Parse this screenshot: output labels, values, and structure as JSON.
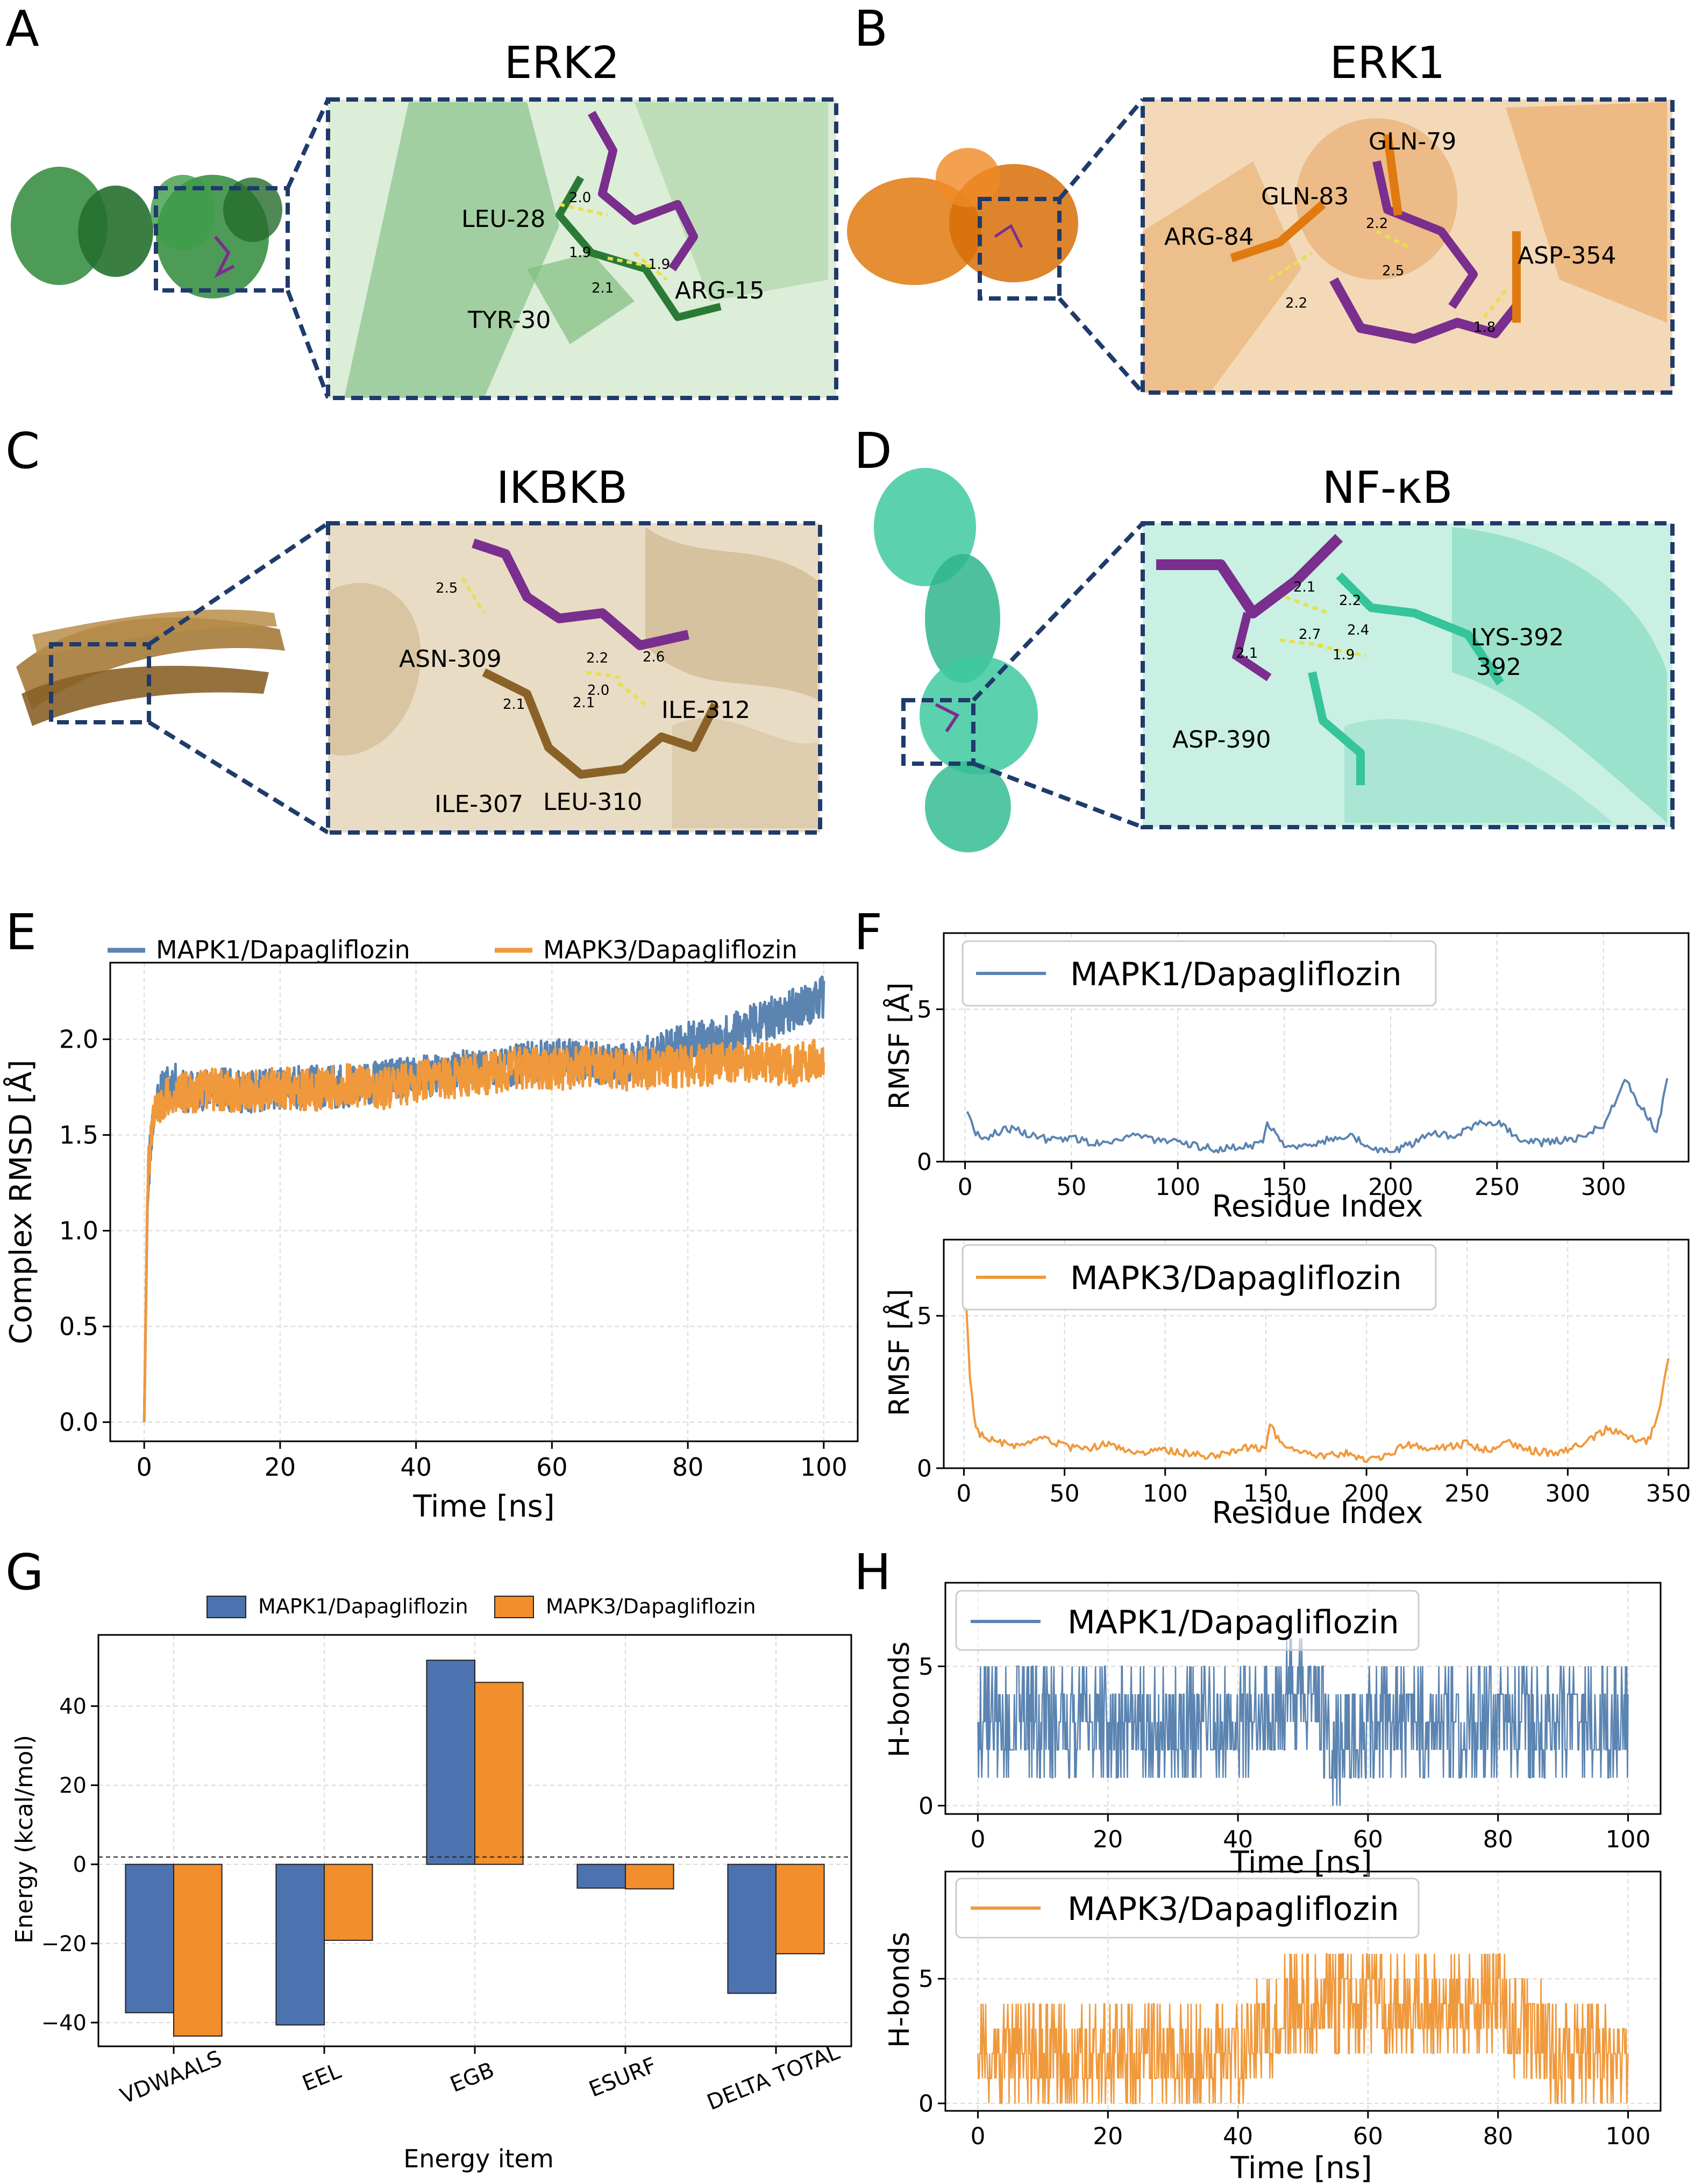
{
  "panel_letters": {
    "A": "A",
    "B": "B",
    "C": "C",
    "D": "D",
    "E": "E",
    "F": "F",
    "G": "G",
    "H": "H"
  },
  "colors": {
    "mapk1": "#5b84b1",
    "mapk3": "#f0993c",
    "bar_blue": "#4c72b0",
    "bar_orange": "#f28e2b",
    "erk2": "#2f8a3a",
    "erk1": "#e07a10",
    "ikbkb": "#a57a3a",
    "nfkb": "#3fc9a0",
    "ligand": "#7a2e8e",
    "frame": "#1f3b6b"
  },
  "structures": [
    {
      "title": "ERK2",
      "residues": [
        "LEU-28",
        "TYR-30",
        "ARG-15"
      ],
      "distances": [
        "2.0",
        "1.9",
        "2.1",
        "1.9"
      ]
    },
    {
      "title": "ERK1",
      "residues": [
        "GLN-79",
        "GLN-83",
        "ARG-84",
        "ASP-354"
      ],
      "distances": [
        "2.2",
        "2.5",
        "2.2",
        "1.8"
      ]
    },
    {
      "title": "IKBKB",
      "residues": [
        "ASN-309",
        "ILE-312",
        "ILE-307",
        "LEU-310"
      ],
      "distances": [
        "2.5",
        "2.2",
        "2.6",
        "2.1",
        "2.1",
        "2.0"
      ]
    },
    {
      "title": "NF-κB",
      "residues": [
        "LYS-392",
        "ASP-390"
      ],
      "distances": [
        "2.1",
        "2.2",
        "2.7",
        "2.4",
        "2.1",
        "1.9"
      ]
    }
  ],
  "chart_data": [
    {
      "type": "line",
      "panel": "E",
      "title": "",
      "xlabel": "Time [ns]",
      "ylabel": "Complex RMSD [Å]",
      "xlim": [
        -5,
        105
      ],
      "ylim": [
        -0.1,
        2.4
      ],
      "xticks": [
        "0",
        "20",
        "40",
        "60",
        "80",
        "100"
      ],
      "yticks": [
        "0.0",
        "0.5",
        "1.0",
        "1.5",
        "2.0"
      ],
      "grid": true,
      "legend_position": "top",
      "series": [
        {
          "name": "MAPK1/Dapagliflozin",
          "color": "#5b84b1",
          "x": [
            0,
            0.5,
            1,
            2,
            4,
            6,
            10,
            15,
            20,
            25,
            30,
            35,
            40,
            45,
            50,
            55,
            60,
            65,
            70,
            75,
            80,
            85,
            90,
            95,
            100
          ],
          "y": [
            0.0,
            1.2,
            1.5,
            1.7,
            1.78,
            1.72,
            1.75,
            1.72,
            1.74,
            1.76,
            1.75,
            1.78,
            1.8,
            1.82,
            1.85,
            1.87,
            1.9,
            1.88,
            1.86,
            1.92,
            1.98,
            2.0,
            2.08,
            2.15,
            2.22
          ]
        },
        {
          "name": "MAPK3/Dapagliflozin",
          "color": "#f0993c",
          "x": [
            0,
            0.5,
            1,
            2,
            4,
            6,
            10,
            15,
            20,
            25,
            30,
            35,
            40,
            45,
            50,
            55,
            60,
            65,
            70,
            75,
            80,
            85,
            90,
            95,
            100
          ],
          "y": [
            0.0,
            1.25,
            1.5,
            1.65,
            1.7,
            1.72,
            1.74,
            1.72,
            1.75,
            1.73,
            1.76,
            1.74,
            1.78,
            1.8,
            1.82,
            1.85,
            1.84,
            1.86,
            1.84,
            1.85,
            1.86,
            1.87,
            1.88,
            1.86,
            1.9
          ]
        }
      ]
    },
    {
      "type": "line",
      "panel": "F-top",
      "xlabel": "Residue Index",
      "ylabel": "RMSF [Å]",
      "xlim": [
        -10,
        340
      ],
      "ylim": [
        0,
        7.5
      ],
      "xticks": [
        "0",
        "50",
        "100",
        "150",
        "200",
        "250",
        "300"
      ],
      "yticks": [
        "0",
        "5"
      ],
      "grid": true,
      "legend_position": "top-left",
      "series": [
        {
          "name": "MAPK1/Dapagliflozin",
          "color": "#5b84b1",
          "x": [
            1,
            5,
            10,
            20,
            30,
            40,
            50,
            60,
            70,
            80,
            90,
            100,
            110,
            120,
            130,
            140,
            142,
            150,
            160,
            170,
            180,
            190,
            200,
            210,
            220,
            230,
            240,
            250,
            260,
            270,
            280,
            290,
            300,
            305,
            310,
            315,
            320,
            325,
            330
          ],
          "y": [
            1.7,
            0.9,
            0.8,
            1.1,
            0.9,
            0.7,
            0.8,
            0.6,
            0.7,
            0.9,
            0.7,
            0.6,
            0.5,
            0.4,
            0.5,
            0.6,
            1.3,
            0.6,
            0.5,
            0.7,
            0.9,
            0.5,
            0.3,
            0.6,
            1.0,
            0.8,
            1.2,
            1.3,
            0.8,
            0.6,
            0.7,
            0.8,
            1.2,
            1.9,
            2.8,
            2.0,
            1.6,
            1.0,
            2.7
          ]
        }
      ]
    },
    {
      "type": "line",
      "panel": "F-bottom",
      "xlabel": "Residue Index",
      "ylabel": "RMSF [Å]",
      "xlim": [
        -10,
        360
      ],
      "ylim": [
        0,
        7.5
      ],
      "xticks": [
        "0",
        "50",
        "100",
        "150",
        "200",
        "250",
        "300",
        "350"
      ],
      "yticks": [
        "0",
        "5"
      ],
      "grid": true,
      "legend_position": "top-left",
      "series": [
        {
          "name": "MAPK3/Dapagliflozin",
          "color": "#f0993c",
          "x": [
            1,
            3,
            6,
            10,
            20,
            30,
            40,
            50,
            60,
            70,
            80,
            90,
            100,
            110,
            120,
            130,
            140,
            150,
            152,
            160,
            170,
            180,
            190,
            200,
            210,
            220,
            230,
            240,
            250,
            260,
            270,
            280,
            290,
            300,
            310,
            320,
            330,
            340,
            345,
            350
          ],
          "y": [
            5.6,
            3.0,
            1.3,
            1.0,
            0.8,
            0.7,
            1.0,
            0.7,
            0.6,
            0.8,
            0.6,
            0.5,
            0.6,
            0.5,
            0.4,
            0.5,
            0.7,
            0.6,
            1.4,
            0.6,
            0.5,
            0.4,
            0.5,
            0.3,
            0.4,
            0.8,
            0.6,
            0.7,
            0.8,
            0.6,
            0.9,
            0.6,
            0.5,
            0.6,
            0.9,
            1.3,
            1.0,
            0.9,
            1.8,
            3.5
          ]
        }
      ]
    },
    {
      "type": "bar",
      "panel": "G",
      "xlabel": "Energy item",
      "ylabel": "Energy (kcal/mol)",
      "categories": [
        "VDWAALS",
        "EEL",
        "EGB",
        "ESURF",
        "DELTA TOTAL"
      ],
      "ylim": [
        -46,
        58
      ],
      "yticks": [
        "−40",
        "−20",
        "0",
        "20",
        "40"
      ],
      "grid": true,
      "legend_position": "top",
      "series": [
        {
          "name": "MAPK1/Dapagliflozin",
          "color": "#4c72b0",
          "values": [
            -37.5,
            -40.6,
            51.6,
            -6.0,
            -32.6
          ]
        },
        {
          "name": "MAPK3/Dapagliflozin",
          "color": "#f28e2b",
          "values": [
            -43.4,
            -19.2,
            46.0,
            -6.2,
            -22.6
          ]
        }
      ]
    },
    {
      "type": "line",
      "panel": "H-top",
      "xlabel": "Time [ns]",
      "ylabel": "H-bonds",
      "xlim": [
        -5,
        105
      ],
      "ylim": [
        -0.3,
        8
      ],
      "xticks": [
        "0",
        "20",
        "40",
        "60",
        "80",
        "100"
      ],
      "yticks": [
        "0",
        "5"
      ],
      "grid": true,
      "legend_position": "top-left",
      "series": [
        {
          "name": "MAPK1/Dapagliflozin",
          "color": "#5b84b1",
          "x": [
            0,
            10,
            20,
            30,
            40,
            50,
            55,
            60,
            70,
            80,
            90,
            100
          ],
          "y": [
            3,
            3,
            3,
            3,
            3,
            4,
            2,
            3,
            3,
            3,
            3,
            3
          ]
        }
      ]
    },
    {
      "type": "line",
      "panel": "H-bottom",
      "xlabel": "Time [ns]",
      "ylabel": "H-bonds",
      "xlim": [
        -5,
        105
      ],
      "ylim": [
        -0.3,
        9.3
      ],
      "xticks": [
        "0",
        "20",
        "40",
        "60",
        "80",
        "100"
      ],
      "yticks": [
        "0",
        "5"
      ],
      "grid": true,
      "legend_position": "top-left",
      "series": [
        {
          "name": "MAPK3/Dapagliflozin",
          "color": "#f0993c",
          "x": [
            0,
            10,
            20,
            30,
            40,
            45,
            50,
            60,
            70,
            80,
            85,
            90,
            100
          ],
          "y": [
            2,
            2,
            2,
            2,
            2,
            3,
            4,
            4,
            4,
            4,
            3,
            2,
            2
          ]
        }
      ]
    }
  ]
}
